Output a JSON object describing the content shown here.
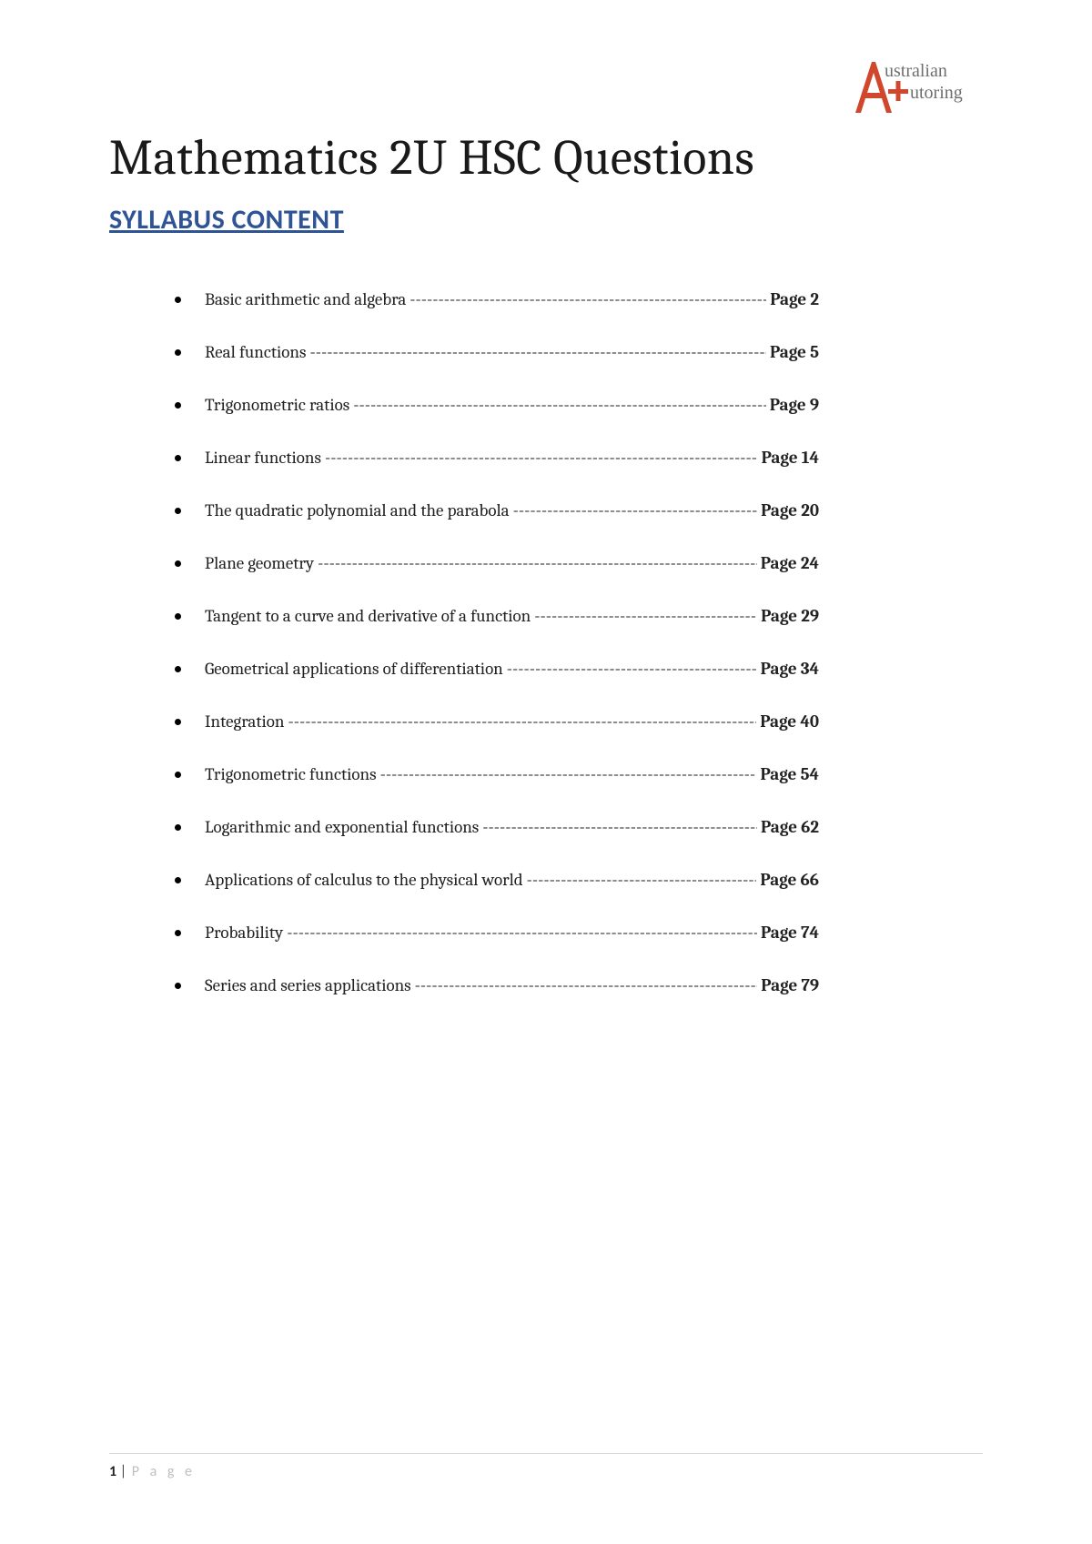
{
  "logo": {
    "line1": "ustralian",
    "line2": "utoring",
    "accent_color": "#d1472e",
    "text_color": "#6e6e6e"
  },
  "title": "Mathematics 2U HSC Questions",
  "subtitle": "SYLLABUS CONTENT",
  "subtitle_color": "#2f5496",
  "toc": [
    {
      "label": "Basic arithmetic and algebra",
      "page": "Page 2"
    },
    {
      "label": "Real functions",
      "page": "Page 5"
    },
    {
      "label": "Trigonometric ratios",
      "page": "Page 9"
    },
    {
      "label": "Linear functions",
      "page": "Page 14"
    },
    {
      "label": "The quadratic polynomial and the parabola",
      "page": "Page 20"
    },
    {
      "label": "Plane geometry",
      "page": "Page 24"
    },
    {
      "label": "Tangent to a curve and derivative of a function",
      "page": "Page 29"
    },
    {
      "label": "Geometrical applications of differentiation",
      "page": "Page 34"
    },
    {
      "label": "Integration",
      "page": "Page 40"
    },
    {
      "label": "Trigonometric functions",
      "page": "Page 54"
    },
    {
      "label": "Logarithmic and exponential functions",
      "page": "Page 62"
    },
    {
      "label": "Applications of calculus to the physical world",
      "page": "Page 66"
    },
    {
      "label": "Probability",
      "page": "Page 74"
    },
    {
      "label": "Series and series applications",
      "page": "Page 79"
    }
  ],
  "footer": {
    "page_num": "1",
    "sep": " | ",
    "word": "P a g e"
  }
}
